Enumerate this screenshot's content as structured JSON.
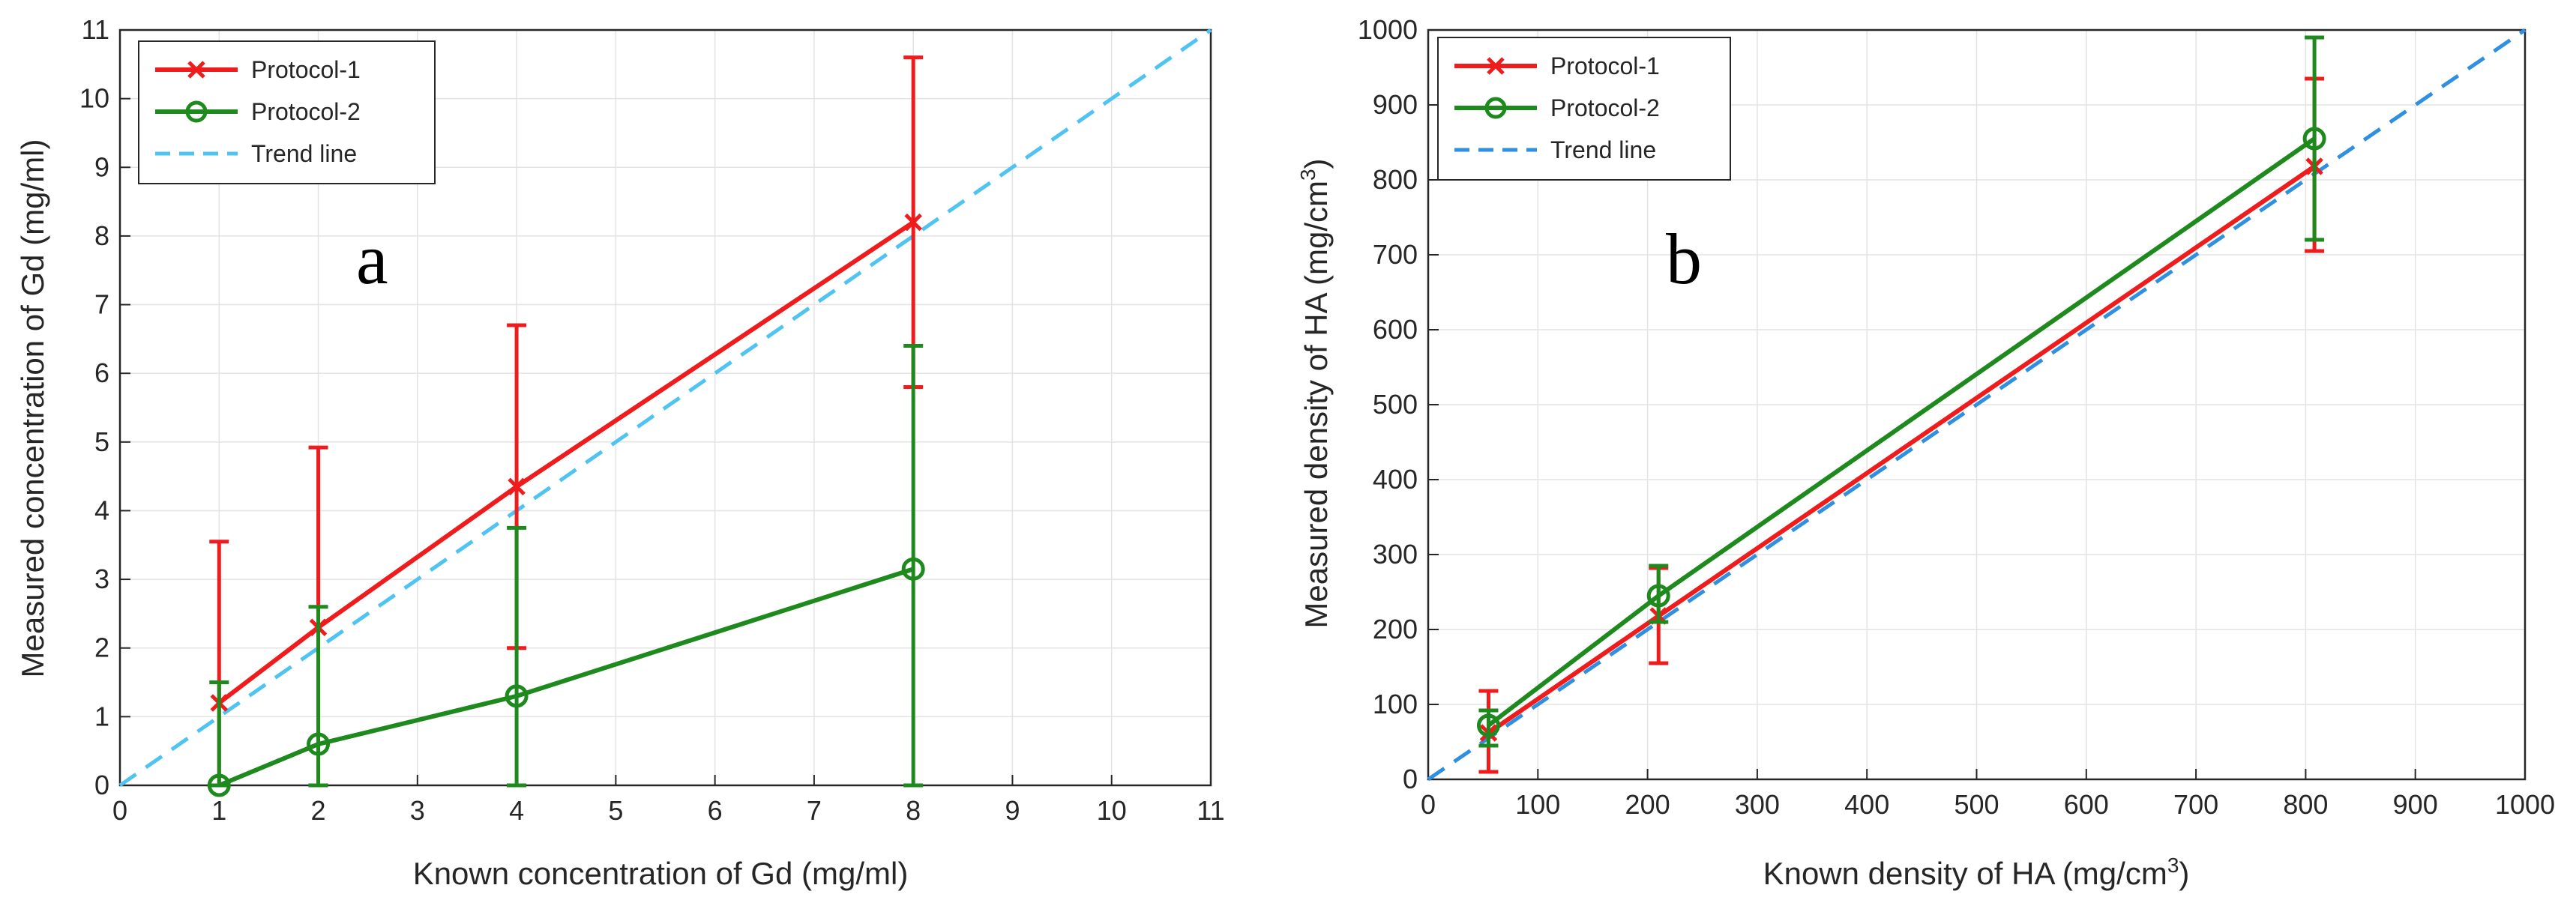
{
  "chart_data": [
    {
      "type": "line",
      "panel_label": "a",
      "xlabel": "Known concentration of Gd (mg/ml)",
      "ylabel": "Measured concentration of Gd (mg/ml)",
      "xlim": [
        0,
        11
      ],
      "ylim": [
        0,
        11
      ],
      "xticks": [
        0,
        1,
        2,
        3,
        4,
        5,
        6,
        7,
        8,
        9,
        10,
        11
      ],
      "yticks": [
        0,
        1,
        2,
        3,
        4,
        5,
        6,
        7,
        8,
        9,
        10,
        11
      ],
      "grid": true,
      "legend_position": "top-left",
      "series": [
        {
          "name": "Protocol-1",
          "color": "#ee1c1c",
          "marker": "x",
          "x": [
            1,
            2,
            4,
            8
          ],
          "y": [
            1.2,
            2.3,
            4.35,
            8.2
          ],
          "err_low": [
            0,
            0,
            2.0,
            5.8
          ],
          "err_high": [
            3.55,
            4.92,
            6.7,
            10.6
          ]
        },
        {
          "name": "Protocol-2",
          "color": "#1e8a1e",
          "marker": "o",
          "x": [
            1,
            2,
            4,
            8
          ],
          "y": [
            0,
            0.6,
            1.3,
            3.15
          ],
          "err_low": [
            0,
            0,
            0,
            0
          ],
          "err_high": [
            1.5,
            2.6,
            3.75,
            6.4
          ]
        },
        {
          "name": "Trend line",
          "color": "#4fc3f2",
          "dashed": true,
          "x": [
            0,
            11
          ],
          "y": [
            0,
            11
          ]
        }
      ]
    },
    {
      "type": "line",
      "panel_label": "b",
      "xlabel_main": "Known density of HA (mg/cm",
      "xlabel_sup": "3",
      "xlabel_end": ")",
      "ylabel_main": "Measured density of HA (mg/cm",
      "ylabel_sup": "3",
      "ylabel_end": ")",
      "xlim": [
        0,
        1000
      ],
      "ylim": [
        0,
        1000
      ],
      "xticks": [
        0,
        100,
        200,
        300,
        400,
        500,
        600,
        700,
        800,
        900,
        1000
      ],
      "yticks": [
        0,
        100,
        200,
        300,
        400,
        500,
        600,
        700,
        800,
        900,
        1000
      ],
      "grid": true,
      "legend_position": "top-left",
      "series": [
        {
          "name": "Protocol-1",
          "color": "#ee1c1c",
          "marker": "x",
          "x": [
            55,
            210,
            808
          ],
          "y": [
            62,
            218,
            818
          ],
          "err_low": [
            10,
            155,
            705
          ],
          "err_high": [
            118,
            282,
            935
          ]
        },
        {
          "name": "Protocol-2",
          "color": "#1e8a1e",
          "marker": "o",
          "x": [
            55,
            210,
            808
          ],
          "y": [
            72,
            245,
            855
          ],
          "err_low": [
            45,
            210,
            720
          ],
          "err_high": [
            92,
            285,
            990
          ]
        },
        {
          "name": "Trend line",
          "color": "#2f8fe0",
          "dashed": true,
          "x": [
            0,
            1000
          ],
          "y": [
            0,
            1000
          ]
        }
      ]
    }
  ]
}
